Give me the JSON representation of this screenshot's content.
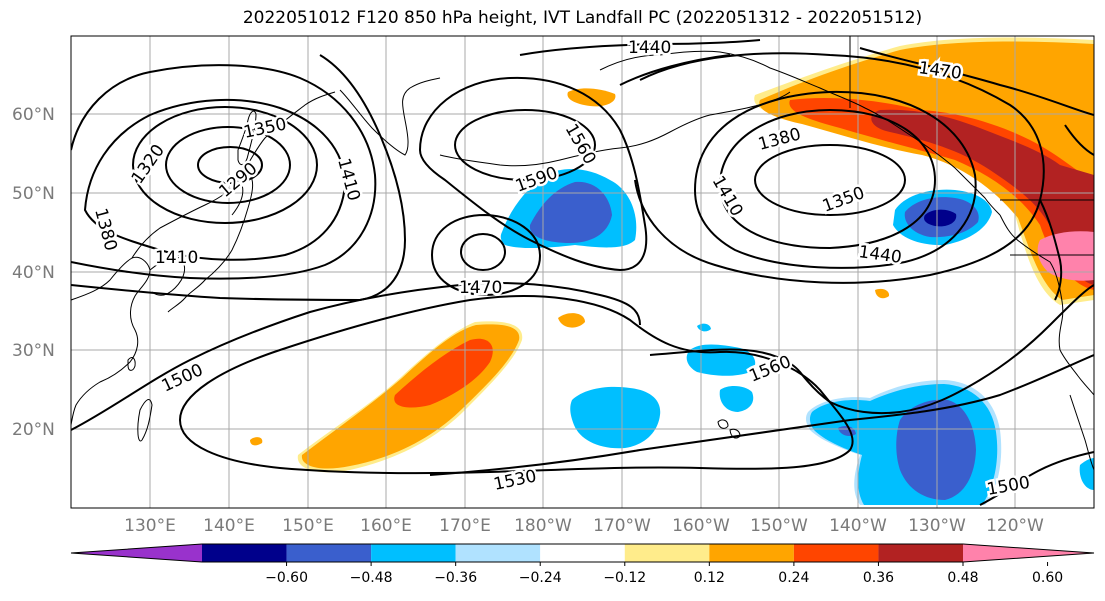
{
  "title": "2022051012 F120 850 hPa height, IVT Landfall PC (2022051312 - 2022051512)",
  "lat_labels": [
    "60°N",
    "50°N",
    "40°N",
    "30°N",
    "20°N"
  ],
  "lon_labels": [
    "130°E",
    "140°E",
    "150°E",
    "160°E",
    "170°E",
    "180°W",
    "170°W",
    "160°W",
    "150°W",
    "140°W",
    "130°W",
    "120°W"
  ],
  "contour_labels": [
    "1440",
    "1470",
    "1350",
    "1320",
    "1380",
    "1290",
    "1410",
    "1410",
    "1560",
    "1590",
    "1470",
    "1380",
    "1410",
    "1350",
    "1440",
    "1500",
    "1560",
    "1530",
    "1500"
  ],
  "colorbar": {
    "tick_labels": [
      "−0.60",
      "−0.48",
      "−0.36",
      "−0.24",
      "−0.12",
      "0.12",
      "0.24",
      "0.36",
      "0.48",
      "0.60"
    ],
    "colors": [
      "#9932cc",
      "#00008b",
      "#3a5fcd",
      "#00bfff",
      "#b0e2ff",
      "#ffffff",
      "#ffec8b",
      "#ffa500",
      "#ff4500",
      "#b22222",
      "#ff82ab"
    ]
  }
}
